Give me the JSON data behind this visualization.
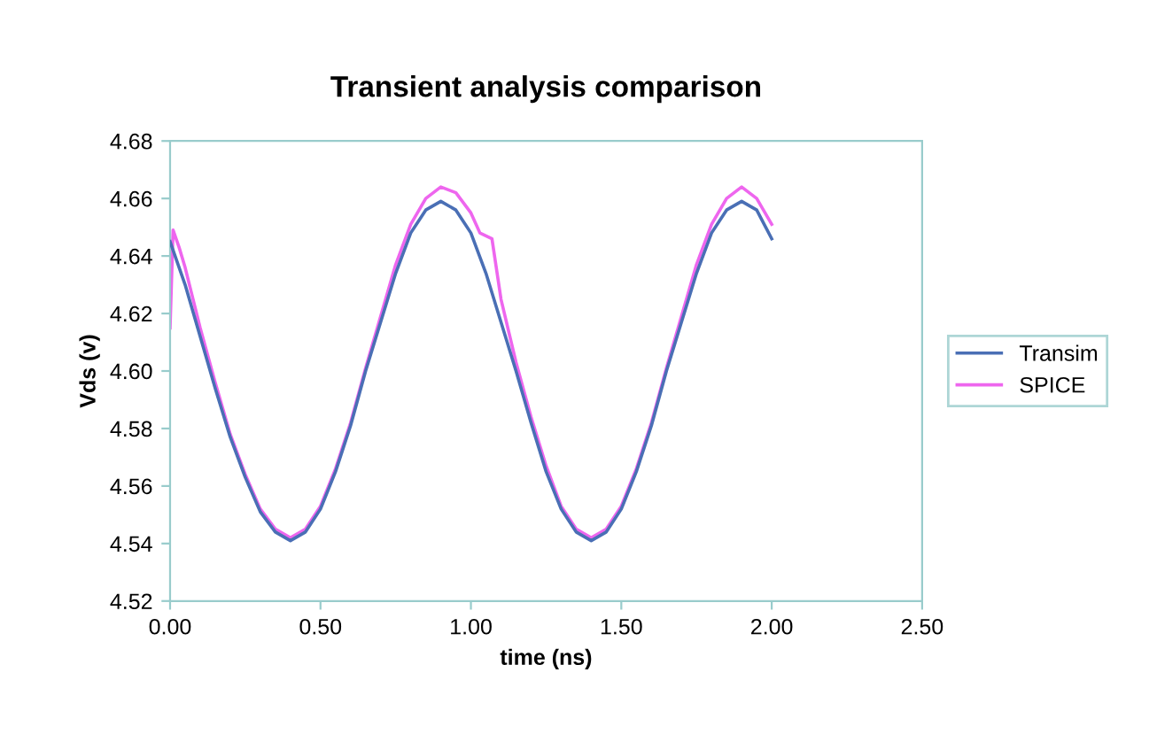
{
  "chart_data": {
    "type": "line",
    "title": "Transient analysis comparison",
    "xlabel": "time (ns)",
    "ylabel": "Vds (v)",
    "xlim": [
      0,
      2.5
    ],
    "xticks": [
      {
        "value": 0,
        "label": "0.00"
      },
      {
        "value": 0.5,
        "label": "0.50"
      },
      {
        "value": 1,
        "label": "1.00"
      },
      {
        "value": 1.5,
        "label": "1.50"
      },
      {
        "value": 2,
        "label": "2.00"
      },
      {
        "value": 2.5,
        "label": "2.50"
      }
    ],
    "ylim": [
      4.52,
      4.68
    ],
    "yticks": [
      4.52,
      4.54,
      4.56,
      4.58,
      {
        "value": 4.6,
        "label": "4.60"
      },
      4.62,
      4.64,
      4.66,
      4.68
    ],
    "grid": false,
    "legend": "right",
    "marker": "none",
    "line_style": "solid",
    "series": [
      {
        "name": "Transim",
        "color": "#4a6fb5",
        "x": [
          0,
          0.05,
          0.1,
          0.15,
          0.2,
          0.25,
          0.3,
          0.35,
          0.4,
          0.45,
          0.5,
          0.55,
          0.6,
          0.65,
          0.7,
          0.75,
          0.8,
          0.85,
          0.9,
          0.95,
          1.0,
          1.05,
          1.1,
          1.15,
          1.2,
          1.25,
          1.3,
          1.35,
          1.4,
          1.45,
          1.5,
          1.55,
          1.6,
          1.65,
          1.7,
          1.75,
          1.8,
          1.85,
          1.9,
          1.95,
          2.0
        ],
        "values": [
          4.645,
          4.63,
          4.612,
          4.594,
          4.577,
          4.563,
          4.551,
          4.544,
          4.541,
          4.544,
          4.552,
          4.565,
          4.581,
          4.6,
          4.617,
          4.634,
          4.648,
          4.656,
          4.659,
          4.656,
          4.648,
          4.634,
          4.617,
          4.6,
          4.582,
          4.565,
          4.552,
          4.544,
          4.541,
          4.544,
          4.552,
          4.565,
          4.581,
          4.6,
          4.617,
          4.634,
          4.648,
          4.656,
          4.659,
          4.656,
          4.646
        ]
      },
      {
        "name": "SPICE",
        "color": "#ee66ee",
        "x": [
          0,
          0.01,
          0.03,
          0.05,
          0.1,
          0.15,
          0.2,
          0.25,
          0.3,
          0.35,
          0.4,
          0.45,
          0.5,
          0.55,
          0.6,
          0.65,
          0.7,
          0.75,
          0.8,
          0.85,
          0.9,
          0.95,
          1.0,
          1.03,
          1.07,
          1.1,
          1.15,
          1.2,
          1.25,
          1.3,
          1.35,
          1.4,
          1.45,
          1.5,
          1.55,
          1.6,
          1.65,
          1.7,
          1.75,
          1.8,
          1.85,
          1.9,
          1.95,
          2.0
        ],
        "values": [
          4.615,
          4.649,
          4.643,
          4.636,
          4.615,
          4.596,
          4.578,
          4.564,
          4.552,
          4.545,
          4.542,
          4.545,
          4.553,
          4.566,
          4.582,
          4.601,
          4.619,
          4.637,
          4.651,
          4.66,
          4.664,
          4.662,
          4.655,
          4.648,
          4.646,
          4.625,
          4.603,
          4.584,
          4.567,
          4.553,
          4.545,
          4.542,
          4.545,
          4.553,
          4.566,
          4.582,
          4.601,
          4.619,
          4.637,
          4.651,
          4.66,
          4.664,
          4.66,
          4.651
        ]
      }
    ]
  }
}
